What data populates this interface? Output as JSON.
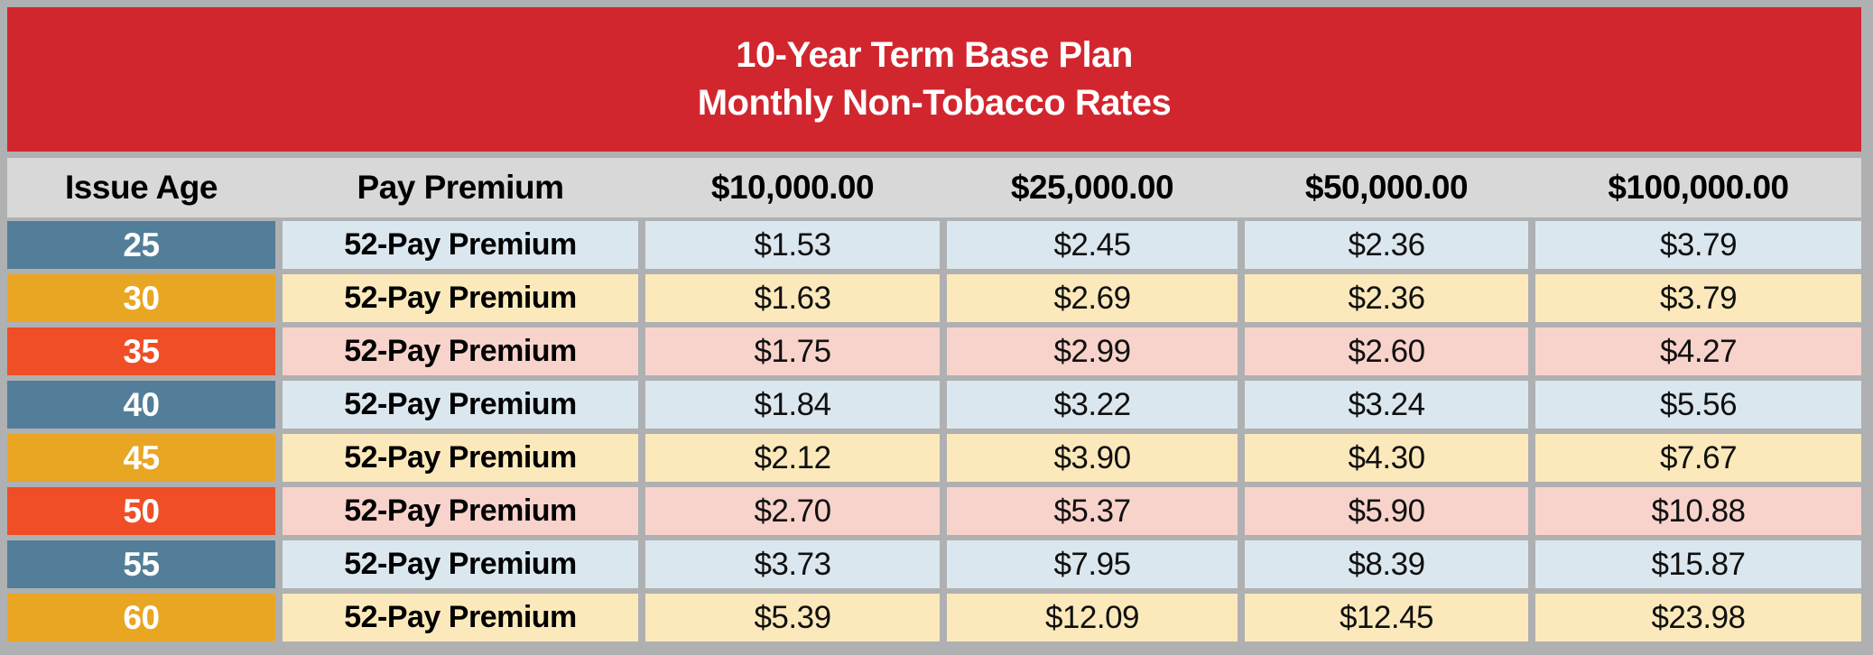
{
  "colors": {
    "banner_red": "#d2262f",
    "header_gray": "#d8d8d8",
    "frame_gray": "#afb0b2",
    "age_blue": "#537e99",
    "age_gold": "#e9a623",
    "age_orange": "#ef4e26",
    "tint_blue": "#dbe7ee",
    "tint_gold": "#fce9bb",
    "tint_orange": "#f8d3cb"
  },
  "chart_data": {
    "type": "table",
    "title": "10-Year Term Base Plan",
    "subtitle": "Monthly Non-Tobacco Rates",
    "columns": [
      "Issue Age",
      "Pay Premium",
      "$10,000.00",
      "$25,000.00",
      "$50,000.00",
      "$100,000.00"
    ],
    "rows": [
      {
        "age": "25",
        "premium_type": "52-Pay Premium",
        "theme": "blue",
        "rates": [
          "$1.53",
          "$2.45",
          "$2.36",
          "$3.79"
        ]
      },
      {
        "age": "30",
        "premium_type": "52-Pay Premium",
        "theme": "gold",
        "rates": [
          "$1.63",
          "$2.69",
          "$2.36",
          "$3.79"
        ]
      },
      {
        "age": "35",
        "premium_type": "52-Pay Premium",
        "theme": "orange",
        "rates": [
          "$1.75",
          "$2.99",
          "$2.60",
          "$4.27"
        ]
      },
      {
        "age": "40",
        "premium_type": "52-Pay Premium",
        "theme": "blue",
        "rates": [
          "$1.84",
          "$3.22",
          "$3.24",
          "$5.56"
        ]
      },
      {
        "age": "45",
        "premium_type": "52-Pay Premium",
        "theme": "gold",
        "rates": [
          "$2.12",
          "$3.90",
          "$4.30",
          "$7.67"
        ]
      },
      {
        "age": "50",
        "premium_type": "52-Pay Premium",
        "theme": "orange",
        "rates": [
          "$2.70",
          "$5.37",
          "$5.90",
          "$10.88"
        ]
      },
      {
        "age": "55",
        "premium_type": "52-Pay Premium",
        "theme": "blue",
        "rates": [
          "$3.73",
          "$7.95",
          "$8.39",
          "$15.87"
        ]
      },
      {
        "age": "60",
        "premium_type": "52-Pay Premium",
        "theme": "gold",
        "rates": [
          "$5.39",
          "$12.09",
          "$12.45",
          "$23.98"
        ]
      }
    ]
  }
}
